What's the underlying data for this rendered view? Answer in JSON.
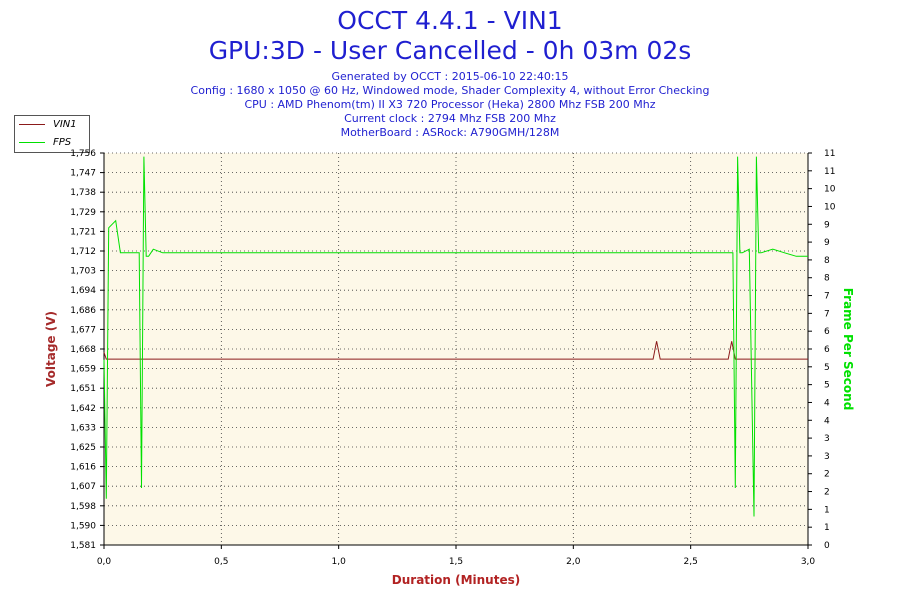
{
  "header": {
    "title_line1": "OCCT 4.4.1 - VIN1",
    "title_line2": "GPU:3D - User Cancelled - 0h 03m 02s",
    "generated": "Generated by OCCT : 2015-06-10 22:40:15",
    "config": "Config : 1680 x 1050 @ 60 Hz, Windowed mode, Shader Complexity 4, without Error Checking",
    "cpu": "CPU : AMD Phenom(tm) II X3 720 Processor (Heka) 2800 Mhz FSB 200 Mhz",
    "clock": "Current clock : 2794 Mhz FSB 200 Mhz",
    "motherboard": "MotherBoard : ASRock: A790GMH/128M"
  },
  "legend": {
    "vin1_label": "VIN1",
    "fps_label": "FPS"
  },
  "colors": {
    "vin1": "#8b1a1a",
    "fps": "#00e000",
    "plot_bg": "#fdf8e8",
    "grid": "#3a3a3a",
    "axis_left_label": "#a52a2a",
    "axis_right_label": "#00e000",
    "axis_x_label": "#b22222"
  },
  "chart_data": {
    "type": "line",
    "xlabel": "Duration (Minutes)",
    "ylabel_left": "Voltage (V)",
    "ylabel_right": "Frame Per Second",
    "xlim": [
      0,
      3
    ],
    "ylim_left": [
      1.581,
      1.756
    ],
    "ylim_right": [
      0,
      11
    ],
    "x_ticks": [
      "0,0",
      "0,5",
      "1,0",
      "1,5",
      "2,0",
      "2,5",
      "3,0"
    ],
    "y_left_ticks": [
      "1,581",
      "1,590",
      "1,598",
      "1,607",
      "1,616",
      "1,625",
      "1,633",
      "1,642",
      "1,651",
      "1,659",
      "1,668",
      "1,677",
      "1,686",
      "1,694",
      "1,703",
      "1,712",
      "1,721",
      "1,729",
      "1,738",
      "1,747",
      "1,756"
    ],
    "y_right_ticks": [
      "0",
      "1",
      "1",
      "2",
      "2",
      "3",
      "3",
      "4",
      "4",
      "5",
      "5",
      "6",
      "6",
      "7",
      "7",
      "8",
      "8",
      "9",
      "9",
      "10",
      "10",
      "11",
      "11"
    ],
    "grid": true,
    "series": [
      {
        "name": "VIN1",
        "axis": "left",
        "x": [
          0.0,
          0.01,
          0.02,
          0.35,
          0.7,
          1.05,
          1.4,
          1.75,
          2.1,
          2.34,
          2.355,
          2.37,
          2.66,
          2.675,
          2.69,
          3.0
        ],
        "y": [
          1.667,
          1.664,
          1.664,
          1.664,
          1.664,
          1.664,
          1.664,
          1.664,
          1.664,
          1.664,
          1.672,
          1.664,
          1.664,
          1.672,
          1.664,
          1.664
        ]
      },
      {
        "name": "FPS",
        "axis": "right",
        "x": [
          0.0,
          0.01,
          0.02,
          0.05,
          0.07,
          0.08,
          0.1,
          0.15,
          0.16,
          0.17,
          0.18,
          0.19,
          0.2,
          0.21,
          0.25,
          0.5,
          1.0,
          1.5,
          2.0,
          2.5,
          2.68,
          2.69,
          2.7,
          2.71,
          2.72,
          2.75,
          2.77,
          2.78,
          2.79,
          2.8,
          2.85,
          2.9,
          2.95,
          3.0
        ],
        "y": [
          5.2,
          1.3,
          8.9,
          9.1,
          8.2,
          8.2,
          8.2,
          8.2,
          1.6,
          10.9,
          8.1,
          8.1,
          8.2,
          8.3,
          8.2,
          8.2,
          8.2,
          8.2,
          8.2,
          8.2,
          8.2,
          1.6,
          10.9,
          8.2,
          8.2,
          8.3,
          0.8,
          10.9,
          8.2,
          8.2,
          8.3,
          8.2,
          8.1,
          8.1
        ]
      }
    ]
  }
}
